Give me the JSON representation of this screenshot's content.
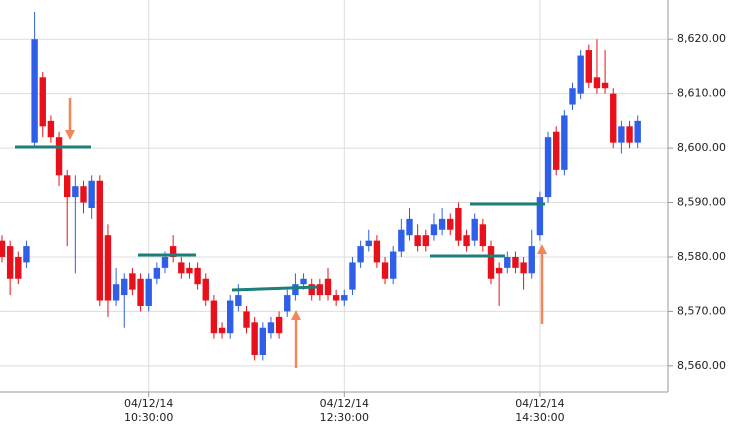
{
  "chart_data": {
    "type": "candlestick",
    "categories": [
      null,
      null,
      null,
      null,
      null,
      null,
      null,
      null,
      null,
      null,
      null,
      null,
      null,
      null,
      null,
      null,
      null,
      null,
      "04/12/14 10:30:00",
      null,
      null,
      null,
      null,
      null,
      null,
      null,
      null,
      null,
      null,
      null,
      null,
      null,
      null,
      null,
      null,
      null,
      null,
      null,
      null,
      null,
      null,
      null,
      "04/12/14 12:30:00",
      null,
      null,
      null,
      null,
      null,
      null,
      null,
      null,
      null,
      null,
      null,
      null,
      null,
      null,
      null,
      null,
      null,
      null,
      null,
      null,
      null,
      null,
      null,
      "04/12/14 14:30:00",
      null,
      null,
      null,
      null,
      null,
      null,
      null,
      null,
      null,
      null,
      null,
      null
    ],
    "open": [
      8583,
      8582,
      8580,
      8579,
      8601,
      8613,
      8605,
      8602,
      8595,
      8591,
      8593,
      8589,
      8594,
      8584,
      8572,
      8573,
      8577,
      8576,
      8571,
      8576,
      8578,
      8582,
      8579,
      8578,
      8578,
      8576,
      8572,
      8567,
      8566,
      8571,
      8570,
      8568,
      8562,
      8566,
      8569,
      8570,
      8573,
      8575,
      8575,
      8575,
      8576,
      8573,
      8572,
      8574,
      8579,
      8582,
      8583,
      8579,
      8576,
      8581,
      8584,
      8584,
      8584,
      8584,
      8585,
      8587,
      8589,
      8584,
      8583,
      8586,
      8582,
      8578,
      8578,
      8580,
      8579,
      8577,
      8584,
      8591,
      8603,
      8596,
      8608,
      8610,
      8618,
      8613,
      8612,
      8610,
      8601,
      8604,
      8601
    ],
    "high": [
      8584,
      8583,
      8581,
      8583,
      8625,
      8614,
      8606,
      8603,
      8596,
      8595,
      8594,
      8595,
      8595,
      8586,
      8578,
      8577,
      8578,
      8577,
      8577,
      8579,
      8581,
      8584,
      8580,
      8579,
      8579,
      8577,
      8573,
      8568,
      8573,
      8575,
      8571,
      8569,
      8568,
      8569,
      8570,
      8574,
      8577,
      8577,
      8576,
      8576,
      8578,
      8574,
      8574,
      8580,
      8583,
      8585,
      8584,
      8580,
      8582,
      8587,
      8589,
      8586,
      8585,
      8588,
      8589,
      8588,
      8590,
      8585,
      8588,
      8587,
      8583,
      8579,
      8581,
      8581,
      8580,
      8585,
      8592,
      8603,
      8604,
      8607,
      8612,
      8618,
      8619,
      8620,
      8618,
      8611,
      8605,
      8605,
      8606
    ],
    "low": [
      8579,
      8573,
      8575,
      8578,
      8600,
      8602,
      8601,
      8593,
      8582,
      8577,
      8588,
      8587,
      8571,
      8569,
      8571,
      8567,
      8573,
      8570,
      8570,
      8575,
      8577,
      8579,
      8576,
      8576,
      8574,
      8571,
      8565,
      8565,
      8565,
      8570,
      8566,
      8561,
      8561,
      8565,
      8565,
      8569,
      8572,
      8574,
      8572,
      8572,
      8572,
      8571,
      8571,
      8573,
      8578,
      8581,
      8578,
      8575,
      8575,
      8580,
      8583,
      8581,
      8581,
      8583,
      8584,
      8584,
      8582,
      8581,
      8582,
      8581,
      8575,
      8571,
      8577,
      8577,
      8574,
      8576,
      8583,
      8590,
      8595,
      8595,
      8607,
      8609,
      8611,
      8610,
      8610,
      8600,
      8599,
      8600,
      8600
    ],
    "close": [
      8580,
      8576,
      8576,
      8582,
      8620,
      8604,
      8602,
      8595,
      8591,
      8593,
      8590,
      8594,
      8572,
      8572,
      8575,
      8576,
      8574,
      8571,
      8576,
      8578,
      8580,
      8580,
      8577,
      8577,
      8575,
      8572,
      8566,
      8566,
      8572,
      8573,
      8567,
      8562,
      8567,
      8568,
      8566,
      8573,
      8575,
      8576,
      8573,
      8573,
      8573,
      8572,
      8573,
      8579,
      8582,
      8583,
      8579,
      8576,
      8581,
      8585,
      8587,
      8582,
      8582,
      8586,
      8587,
      8585,
      8583,
      8582,
      8587,
      8582,
      8576,
      8577,
      8580,
      8578,
      8577,
      8582,
      8591,
      8602,
      8596,
      8606,
      8611,
      8617,
      8612,
      8611,
      8611,
      8601,
      8604,
      8601,
      8605
    ],
    "up_color": "#2f5fe8",
    "down_color": "#e8101a",
    "ylim": [
      8555.2,
      8627.2
    ],
    "yticks": [
      {
        "value": 8560,
        "label": "8,560.00"
      },
      {
        "value": 8570,
        "label": "8,570.00"
      },
      {
        "value": 8580,
        "label": "8,580.00"
      },
      {
        "value": 8590,
        "label": "8,590.00"
      },
      {
        "value": 8600,
        "label": "8,600.00"
      },
      {
        "value": 8610,
        "label": "8,610.00"
      },
      {
        "value": 8620,
        "label": "8,620.00"
      }
    ],
    "grid": true
  }
}
